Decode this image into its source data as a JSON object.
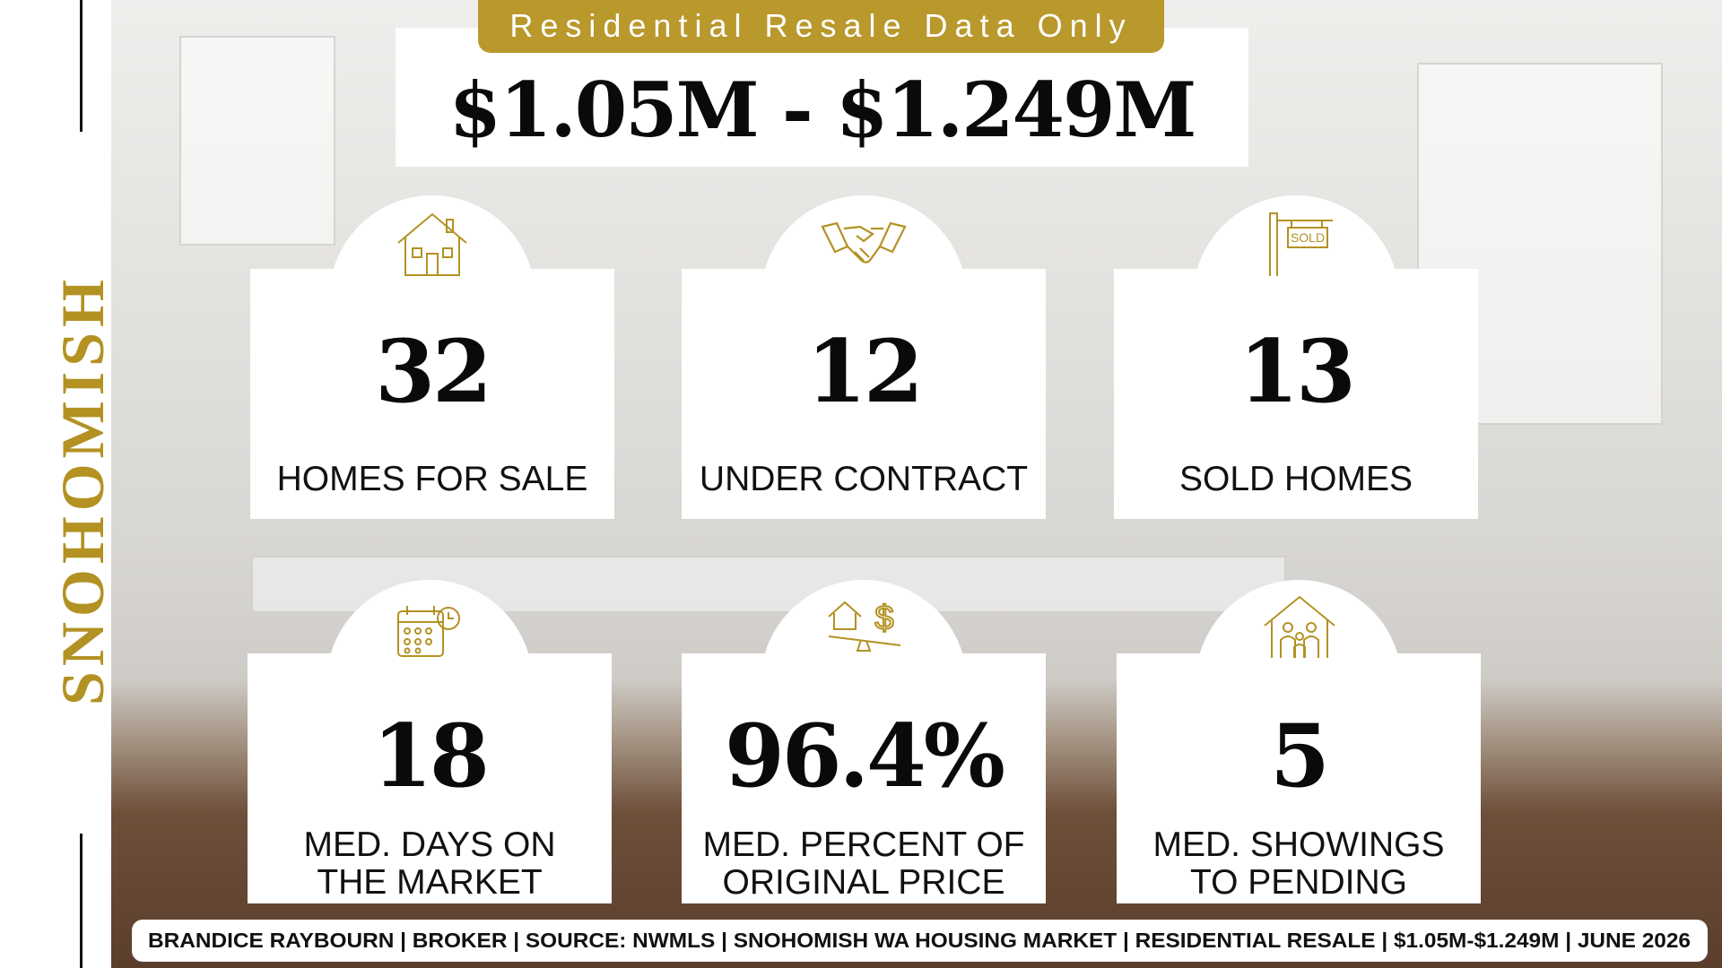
{
  "sidebar": {
    "title": "SNOHOMISH"
  },
  "header": {
    "badge": "Residential Resale Data Only",
    "title": "$1.05M - $1.249M"
  },
  "stats": [
    {
      "value": "32",
      "label": "HOMES FOR SALE"
    },
    {
      "value": "12",
      "label": "UNDER CONTRACT"
    },
    {
      "value": "13",
      "label": "SOLD HOMES"
    },
    {
      "value": "18",
      "label": "MED. DAYS ON THE MARKET"
    },
    {
      "value": "96.4%",
      "label": "MED. PERCENT OF ORIGINAL PRICE"
    },
    {
      "value": "5",
      "label": "MED. SHOWINGS TO PENDING"
    }
  ],
  "footer": "BRANDICE RAYBOURN | BROKER | SOURCE: NWMLS | SNOHOMISH WA HOUSING MARKET | RESIDENTIAL RESALE | $1.05M-$1.249M | JUNE  2026"
}
